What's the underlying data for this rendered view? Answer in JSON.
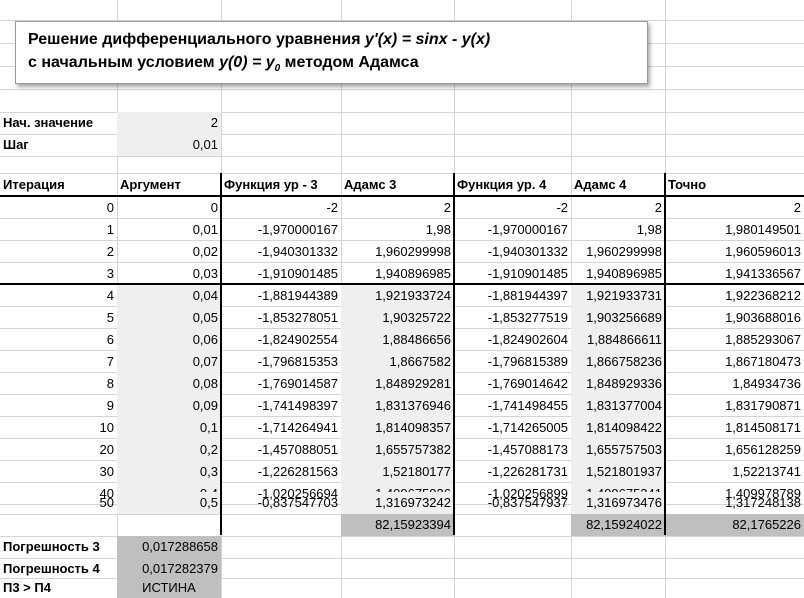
{
  "title": {
    "line1_text": "Решение дифференциального уравнения ",
    "line1_formula": "y'(x) = sinx - y(x)",
    "line2_text": "с начальным условием ",
    "line2_formula_base": "y(0) = y",
    "line2_formula_sub": "0",
    "line2_tail": " методом Адамса"
  },
  "params": {
    "start_label": "Нач. значение",
    "start_value": "2",
    "step_label": "Шаг",
    "step_value": "0,01"
  },
  "table": {
    "headers": [
      "Итерация",
      "Аргумент",
      "Функция ур - 3",
      "Адамс 3",
      "Функция ур. 4",
      "Адамс 4",
      "Точно"
    ],
    "rows": [
      [
        "0",
        "0",
        "-2",
        "2",
        "-2",
        "2",
        "2"
      ],
      [
        "1",
        "0,01",
        "-1,970000167",
        "1,98",
        "-1,970000167",
        "1,98",
        "1,980149501"
      ],
      [
        "2",
        "0,02",
        "-1,940301332",
        "1,960299998",
        "-1,940301332",
        "1,960299998",
        "1,960596013"
      ],
      [
        "3",
        "0,03",
        "-1,910901485",
        "1,940896985",
        "-1,910901485",
        "1,940896985",
        "1,941336567"
      ],
      [
        "4",
        "0,04",
        "-1,881944389",
        "1,921933724",
        "-1,881944397",
        "1,921933731",
        "1,922368212"
      ],
      [
        "5",
        "0,05",
        "-1,853278051",
        "1,90325722",
        "-1,853277519",
        "1,903256689",
        "1,903688016"
      ],
      [
        "6",
        "0,06",
        "-1,824902554",
        "1,88486656",
        "-1,824902604",
        "1,884866611",
        "1,885293067"
      ],
      [
        "7",
        "0,07",
        "-1,796815353",
        "1,8667582",
        "-1,796815389",
        "1,866758236",
        "1,867180473"
      ],
      [
        "8",
        "0,08",
        "-1,769014587",
        "1,848929281",
        "-1,769014642",
        "1,848929336",
        "1,84934736"
      ],
      [
        "9",
        "0,09",
        "-1,741498397",
        "1,831376946",
        "-1,741498455",
        "1,831377004",
        "1,831790871"
      ],
      [
        "10",
        "0,1",
        "-1,714264941",
        "1,814098357",
        "-1,714265005",
        "1,814098422",
        "1,814508171"
      ],
      [
        "20",
        "0,2",
        "-1,457088051",
        "1,655757382",
        "-1,457088173",
        "1,655757503",
        "1,656128259"
      ],
      [
        "30",
        "0,3",
        "-1,226281563",
        "1,52180177",
        "-1,226281731",
        "1,521801937",
        "1,52213741"
      ],
      [
        "40",
        "0,4",
        "-1,020256694",
        "1,409675036",
        "-1,020256899",
        "1,409675241",
        "1,409978789"
      ],
      [
        "50",
        "0,5",
        "-0,837547703",
        "1,316973242",
        "-0,837547937",
        "1,316973476",
        "1,317248138"
      ]
    ],
    "sums": {
      "adams3": "82,15923394",
      "adams4": "82,15924022",
      "exact": "82,1765226"
    }
  },
  "errors": {
    "err3_label": "Погрешность 3",
    "err3_value": "0,017288658",
    "err4_label": "Погрешность 4",
    "err4_value": "0,017282379",
    "compare_label": "П3 > П4",
    "compare_value": "ИСТИНА"
  }
}
